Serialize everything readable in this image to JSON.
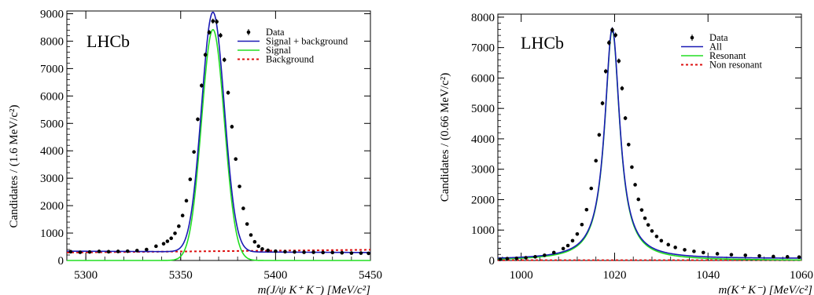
{
  "chart_data": [
    {
      "type": "scatter",
      "watermark": "LHCb",
      "xlabel": "m(J/ψ K⁺ K⁻) [MeV/c²]",
      "ylabel": "Candidates / (1.6 MeV/c²)",
      "xlim": [
        5290,
        5450
      ],
      "ylim": [
        0,
        9100
      ],
      "x_ticks": [
        5300,
        5350,
        5400,
        5450
      ],
      "y_ticks": [
        0,
        1000,
        2000,
        3000,
        4000,
        5000,
        6000,
        7000,
        8000,
        9000
      ],
      "legend_position": "top-right",
      "legend": [
        {
          "label": "Data",
          "style": "marker",
          "color": "#000000"
        },
        {
          "label": "Signal + background",
          "style": "line",
          "color": "#1a1ab4"
        },
        {
          "label": "Signal",
          "style": "line",
          "color": "#22dd22"
        },
        {
          "label": "Background",
          "style": "dashed",
          "color": "#dd1111"
        }
      ],
      "data_points": {
        "x": [
          5292,
          5297,
          5302,
          5307,
          5312,
          5317,
          5322,
          5327,
          5332,
          5337,
          5341,
          5343,
          5345,
          5347,
          5349,
          5351,
          5353,
          5355,
          5357,
          5359,
          5361,
          5363,
          5365,
          5367,
          5369,
          5371,
          5373,
          5375,
          5377,
          5379,
          5381,
          5383,
          5385,
          5387,
          5389,
          5391,
          5393,
          5396,
          5400,
          5405,
          5410,
          5415,
          5420,
          5425,
          5430,
          5435,
          5440,
          5445,
          5449
        ],
        "y": [
          320,
          300,
          310,
          330,
          320,
          330,
          340,
          360,
          400,
          520,
          610,
          700,
          810,
          990,
          1250,
          1640,
          2180,
          2960,
          3960,
          5150,
          6380,
          7500,
          8320,
          8730,
          8710,
          8210,
          7320,
          6120,
          4880,
          3700,
          2700,
          1900,
          1330,
          930,
          680,
          520,
          420,
          370,
          340,
          320,
          310,
          300,
          300,
          290,
          290,
          280,
          270,
          270,
          260
        ]
      },
      "fit_components": [
        {
          "name": "Signal + background",
          "mean": 5367,
          "sigma": 6.0,
          "peak": 8740,
          "background": [
            340,
            290
          ],
          "color": "#1a1ab4"
        },
        {
          "name": "Signal",
          "mean": 5367,
          "sigma": 6.0,
          "peak": 8420,
          "background": [
            0,
            0
          ],
          "color": "#22dd22"
        },
        {
          "name": "Background",
          "background": [
            290,
            390
          ],
          "color": "#dd1111"
        }
      ]
    },
    {
      "type": "scatter",
      "watermark": "LHCb",
      "xlabel": "m(K⁺ K⁻) [MeV/c²]",
      "ylabel": "Candidates / (0.66 MeV/c²)",
      "xlim": [
        995,
        1060
      ],
      "ylim": [
        0,
        8100
      ],
      "x_ticks": [
        1000,
        1020,
        1040,
        1060
      ],
      "y_ticks": [
        0,
        1000,
        2000,
        3000,
        4000,
        5000,
        6000,
        7000,
        8000
      ],
      "legend_position": "top-right",
      "legend": [
        {
          "label": "Data",
          "style": "marker",
          "color": "#000000"
        },
        {
          "label": "All",
          "style": "line",
          "color": "#1a1ab4"
        },
        {
          "label": "Resonant",
          "style": "line",
          "color": "#22dd22"
        },
        {
          "label": "Non resonant",
          "style": "dashed",
          "color": "#dd1111"
        }
      ],
      "data_points": {
        "x": [
          995.5,
          997,
          999,
          1001,
          1003,
          1005,
          1007,
          1009,
          1010,
          1011,
          1012,
          1013,
          1014,
          1015,
          1016,
          1016.7,
          1017.4,
          1018.1,
          1018.8,
          1019.5,
          1020.2,
          1020.9,
          1021.6,
          1022.3,
          1023,
          1023.7,
          1024.4,
          1025.1,
          1025.8,
          1026.5,
          1027.2,
          1028,
          1029,
          1030,
          1031.5,
          1033,
          1035,
          1037,
          1039,
          1042,
          1045,
          1048,
          1051,
          1054,
          1057,
          1059.5
        ],
        "y": [
          40,
          60,
          70,
          90,
          120,
          170,
          260,
          390,
          490,
          650,
          870,
          1180,
          1670,
          2370,
          3280,
          4130,
          5170,
          6220,
          7160,
          7580,
          7410,
          6560,
          5660,
          4680,
          3810,
          3070,
          2490,
          2010,
          1660,
          1390,
          1170,
          970,
          790,
          650,
          520,
          430,
          350,
          300,
          260,
          220,
          190,
          170,
          150,
          130,
          120,
          110
        ]
      },
      "fit_components": [
        {
          "name": "All",
          "mean": 1019.5,
          "gamma": 3.9,
          "peak": 7600,
          "background": [
            30,
            60
          ],
          "color": "#1a1ab4"
        },
        {
          "name": "Resonant",
          "mean": 1019.5,
          "gamma": 3.9,
          "peak": 7580,
          "background": [
            0,
            0
          ],
          "color": "#22dd22"
        },
        {
          "name": "Non resonant",
          "background": [
            8,
            12
          ],
          "color": "#dd1111"
        }
      ]
    }
  ]
}
